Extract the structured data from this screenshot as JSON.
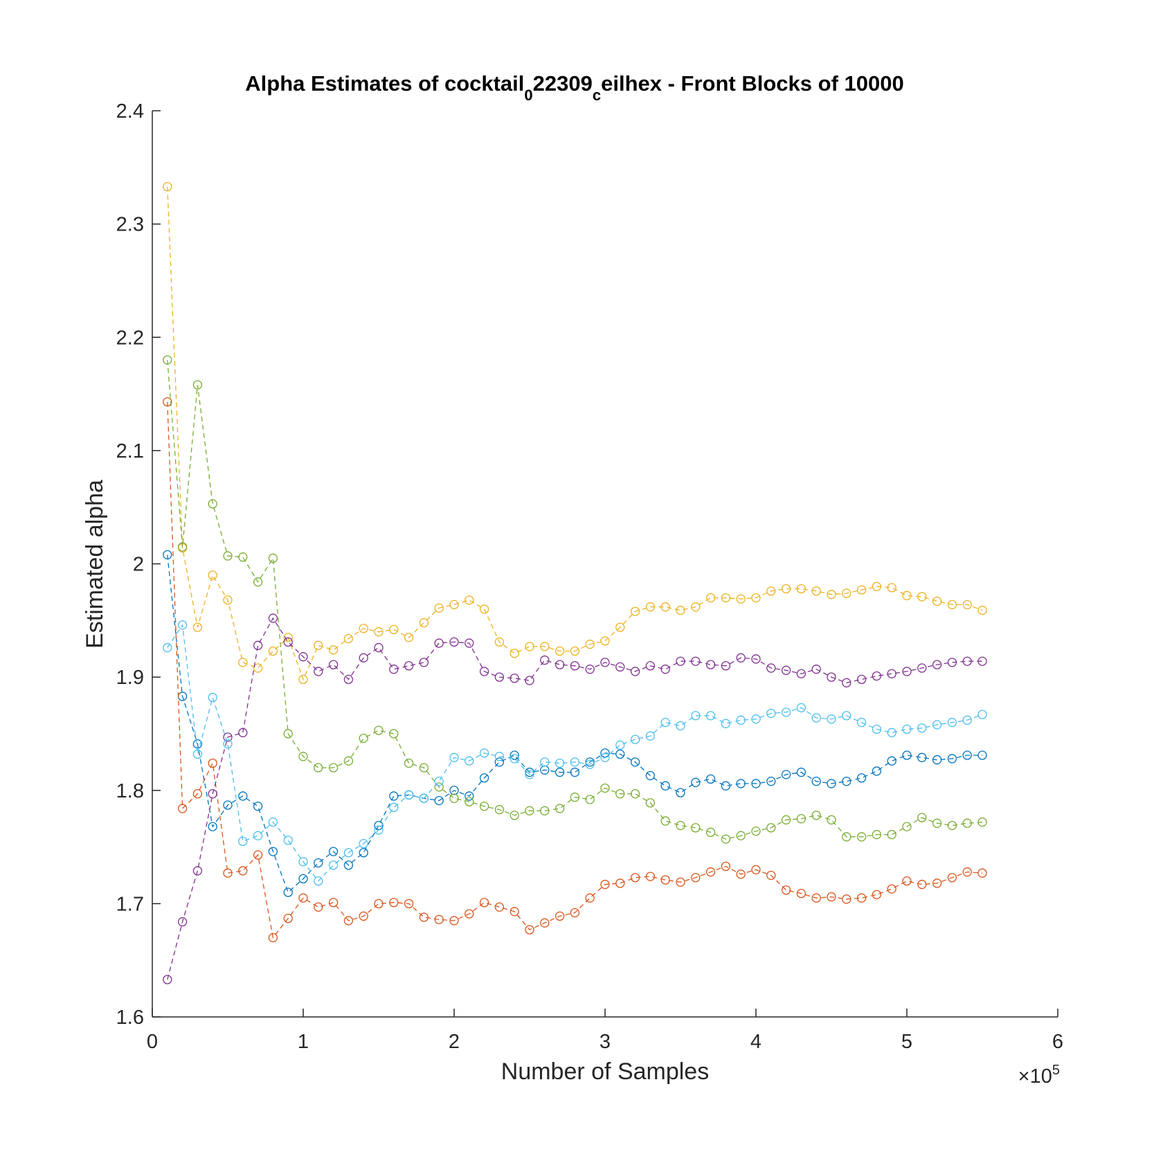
{
  "chart_data": {
    "type": "line",
    "title": {
      "part1": "Alpha Estimates of cocktail",
      "sub1": "0",
      "part2": "22309",
      "sub2": "c",
      "part3": "eilhex - Front Blocks of 10000"
    },
    "xlabel": "Number of Samples",
    "ylabel": "Estimated alpha",
    "x_exponent": {
      "base": "×10",
      "power": "5"
    },
    "xlim": [
      0,
      6
    ],
    "ylim": [
      1.6,
      2.4
    ],
    "xticks": [
      0,
      1,
      2,
      3,
      4,
      5,
      6
    ],
    "xtick_labels": [
      "0",
      "1",
      "2",
      "3",
      "4",
      "5",
      "6"
    ],
    "yticks": [
      1.6,
      1.7,
      1.8,
      1.9,
      2.0,
      2.1,
      2.2,
      2.3,
      2.4
    ],
    "ytick_labels": [
      "1.6",
      "1.7",
      "1.8",
      "1.9",
      "2",
      "2.1",
      "2.2",
      "2.3",
      "2.4"
    ],
    "grid": false,
    "marker": "circle",
    "line_style": "dashed",
    "x": [
      0.1,
      0.2,
      0.3,
      0.4,
      0.5,
      0.6,
      0.7,
      0.8,
      0.9,
      1.0,
      1.1,
      1.2,
      1.3,
      1.4,
      1.5,
      1.6,
      1.7,
      1.8,
      1.9,
      2.0,
      2.1,
      2.2,
      2.3,
      2.4,
      2.5,
      2.6,
      2.7,
      2.8,
      2.9,
      3.0,
      3.1,
      3.2,
      3.3,
      3.4,
      3.5,
      3.6,
      3.7,
      3.8,
      3.9,
      4.0,
      4.1,
      4.2,
      4.3,
      4.4,
      4.5,
      4.6,
      4.7,
      4.8,
      4.9,
      5.0,
      5.1,
      5.2,
      5.3,
      5.4,
      5.5
    ],
    "series": [
      {
        "color": "#0072BD",
        "values": [
          2.008,
          1.883,
          1.841,
          1.768,
          1.787,
          1.795,
          1.786,
          1.746,
          1.71,
          1.722,
          1.736,
          1.746,
          1.734,
          1.745,
          1.769,
          1.795,
          1.796,
          1.793,
          1.791,
          1.8,
          1.795,
          1.811,
          1.825,
          1.831,
          1.816,
          1.818,
          1.816,
          1.816,
          1.825,
          1.833,
          1.832,
          1.825,
          1.813,
          1.804,
          1.798,
          1.807,
          1.81,
          1.804,
          1.806,
          1.806,
          1.808,
          1.814,
          1.816,
          1.808,
          1.806,
          1.808,
          1.811,
          1.817,
          1.826,
          1.831,
          1.829,
          1.827,
          1.828,
          1.831,
          1.831
        ]
      },
      {
        "color": "#D95319",
        "values": [
          2.143,
          1.784,
          1.797,
          1.824,
          1.727,
          1.729,
          1.743,
          1.67,
          1.687,
          1.705,
          1.697,
          1.701,
          1.685,
          1.689,
          1.7,
          1.701,
          1.7,
          1.688,
          1.686,
          1.685,
          1.691,
          1.701,
          1.697,
          1.693,
          1.677,
          1.683,
          1.689,
          1.692,
          1.705,
          1.717,
          1.718,
          1.723,
          1.724,
          1.721,
          1.719,
          1.723,
          1.728,
          1.733,
          1.726,
          1.73,
          1.725,
          1.712,
          1.709,
          1.705,
          1.706,
          1.704,
          1.705,
          1.708,
          1.713,
          1.72,
          1.717,
          1.718,
          1.723,
          1.728,
          1.727
        ]
      },
      {
        "color": "#EDB120",
        "values": [
          2.333,
          2.014,
          1.944,
          1.99,
          1.968,
          1.913,
          1.908,
          1.923,
          1.935,
          1.898,
          1.928,
          1.924,
          1.934,
          1.943,
          1.94,
          1.942,
          1.935,
          1.948,
          1.961,
          1.964,
          1.968,
          1.96,
          1.931,
          1.921,
          1.927,
          1.927,
          1.923,
          1.923,
          1.929,
          1.932,
          1.944,
          1.958,
          1.962,
          1.962,
          1.959,
          1.962,
          1.97,
          1.97,
          1.969,
          1.97,
          1.976,
          1.978,
          1.978,
          1.976,
          1.973,
          1.974,
          1.977,
          1.98,
          1.979,
          1.972,
          1.971,
          1.967,
          1.964,
          1.964,
          1.959
        ]
      },
      {
        "color": "#7E2F8E",
        "values": [
          1.633,
          1.684,
          1.729,
          1.797,
          1.847,
          1.851,
          1.928,
          1.952,
          1.931,
          1.918,
          1.905,
          1.911,
          1.898,
          1.917,
          1.926,
          1.907,
          1.91,
          1.913,
          1.93,
          1.931,
          1.93,
          1.905,
          1.9,
          1.899,
          1.897,
          1.915,
          1.911,
          1.91,
          1.907,
          1.913,
          1.909,
          1.905,
          1.91,
          1.907,
          1.914,
          1.914,
          1.911,
          1.91,
          1.917,
          1.916,
          1.908,
          1.906,
          1.903,
          1.907,
          1.9,
          1.895,
          1.898,
          1.901,
          1.903,
          1.905,
          1.908,
          1.911,
          1.913,
          1.914,
          1.914
        ]
      },
      {
        "color": "#77AC30",
        "values": [
          2.18,
          2.015,
          2.158,
          2.053,
          2.007,
          2.006,
          1.984,
          2.005,
          1.85,
          1.83,
          1.82,
          1.82,
          1.826,
          1.846,
          1.853,
          1.85,
          1.824,
          1.82,
          1.803,
          1.793,
          1.79,
          1.786,
          1.783,
          1.778,
          1.782,
          1.782,
          1.784,
          1.794,
          1.792,
          1.802,
          1.797,
          1.797,
          1.789,
          1.773,
          1.769,
          1.767,
          1.763,
          1.757,
          1.76,
          1.764,
          1.767,
          1.774,
          1.775,
          1.778,
          1.774,
          1.759,
          1.759,
          1.761,
          1.761,
          1.768,
          1.776,
          1.771,
          1.769,
          1.771,
          1.772
        ]
      },
      {
        "color": "#4DBEEE",
        "values": [
          1.926,
          1.946,
          1.832,
          1.882,
          1.841,
          1.755,
          1.76,
          1.772,
          1.756,
          1.737,
          1.72,
          1.734,
          1.745,
          1.753,
          1.765,
          1.785,
          1.796,
          1.793,
          1.808,
          1.829,
          1.826,
          1.833,
          1.83,
          1.828,
          1.814,
          1.825,
          1.824,
          1.825,
          1.823,
          1.829,
          1.84,
          1.845,
          1.848,
          1.86,
          1.857,
          1.866,
          1.866,
          1.859,
          1.862,
          1.863,
          1.868,
          1.869,
          1.873,
          1.864,
          1.863,
          1.866,
          1.86,
          1.854,
          1.851,
          1.854,
          1.855,
          1.858,
          1.86,
          1.862,
          1.867
        ]
      }
    ]
  }
}
